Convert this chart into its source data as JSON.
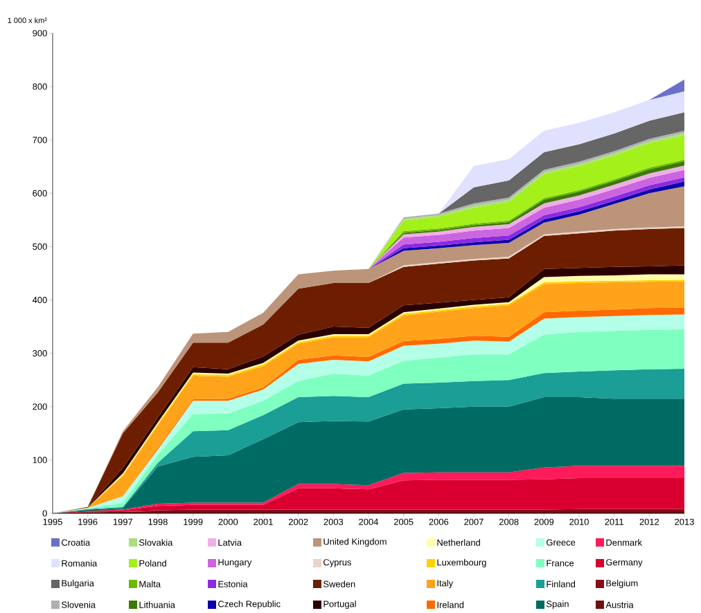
{
  "chart_data": {
    "type": "area",
    "stacked": true,
    "ylabel": "1 000 x km²",
    "xlim": [
      1995,
      2013
    ],
    "ylim": [
      0,
      900
    ],
    "xticks": [
      1995,
      1996,
      1997,
      1998,
      1999,
      2000,
      2001,
      2002,
      2003,
      2004,
      2005,
      2006,
      2007,
      2008,
      2009,
      2010,
      2011,
      2012,
      2013
    ],
    "yticks": [
      0,
      100,
      200,
      300,
      400,
      500,
      600,
      700,
      800,
      900
    ],
    "x": [
      1995,
      1996,
      1997,
      1998,
      1999,
      2000,
      2001,
      2002,
      2003,
      2004,
      2005,
      2006,
      2007,
      2008,
      2009,
      2010,
      2011,
      2012,
      2013
    ],
    "legend": "bottom",
    "series": [
      {
        "name": "Austria",
        "color": "#6b0f0f",
        "values": [
          0,
          2,
          3,
          4,
          4,
          4,
          4,
          4,
          4,
          4,
          4,
          4,
          4,
          4,
          4,
          4,
          4,
          4,
          4
        ]
      },
      {
        "name": "Belgium",
        "color": "#8b0a1e",
        "values": [
          0,
          1,
          1,
          2,
          3,
          3,
          3,
          3,
          3,
          3,
          3,
          3,
          3,
          3,
          3,
          4,
          4,
          4,
          4
        ]
      },
      {
        "name": "Germany",
        "color": "#d9002f",
        "values": [
          0,
          2,
          2,
          8,
          9,
          9,
          9,
          40,
          40,
          38,
          55,
          56,
          56,
          56,
          57,
          58,
          58,
          58,
          58
        ]
      },
      {
        "name": "Denmark",
        "color": "#ff1a5a",
        "values": [
          0,
          0,
          1,
          4,
          4,
          4,
          4,
          8,
          8,
          8,
          14,
          14,
          14,
          14,
          22,
          23,
          23,
          23,
          23
        ]
      },
      {
        "name": "Spain",
        "color": "#006b63",
        "values": [
          0,
          2,
          3,
          70,
          86,
          89,
          119,
          116,
          118,
          119,
          119,
          120,
          123,
          123,
          132,
          129,
          126,
          126,
          126
        ]
      },
      {
        "name": "Finland",
        "color": "#1a9e96",
        "values": [
          0,
          1,
          2,
          7,
          48,
          47,
          45,
          47,
          47,
          46,
          48,
          48,
          48,
          50,
          45,
          48,
          53,
          55,
          56
        ]
      },
      {
        "name": "France",
        "color": "#7fffc0",
        "values": [
          0,
          1,
          8,
          15,
          32,
          31,
          27,
          30,
          42,
          40,
          43,
          47,
          50,
          48,
          72,
          74,
          74,
          74,
          74
        ]
      },
      {
        "name": "Greece",
        "color": "#b3ffe8",
        "values": [
          0,
          1,
          12,
          10,
          25,
          24,
          21,
          32,
          26,
          27,
          28,
          26,
          26,
          24,
          30,
          28,
          28,
          28,
          28
        ]
      },
      {
        "name": "Ireland",
        "color": "#ff6a00",
        "values": [
          0,
          0,
          1,
          3,
          3,
          4,
          4,
          8,
          8,
          8,
          9,
          9,
          9,
          9,
          12,
          12,
          12,
          13,
          13
        ]
      },
      {
        "name": "Italy",
        "color": "#ffa31a",
        "values": [
          0,
          1,
          37,
          42,
          44,
          41,
          40,
          30,
          34,
          37,
          48,
          51,
          52,
          59,
          53,
          52,
          51,
          49,
          49
        ]
      },
      {
        "name": "Luxembourg",
        "color": "#ffd000",
        "values": [
          0,
          0,
          2,
          3,
          3,
          3,
          3,
          3,
          3,
          3,
          3,
          3,
          3,
          3,
          3,
          3,
          3,
          3,
          3
        ]
      },
      {
        "name": "Netherland",
        "color": "#ffffa8",
        "values": [
          0,
          0,
          3,
          3,
          3,
          3,
          3,
          3,
          3,
          3,
          3,
          3,
          3,
          3,
          10,
          10,
          10,
          11,
          10
        ]
      },
      {
        "name": "Portugal",
        "color": "#2a0000",
        "values": [
          0,
          1,
          10,
          9,
          10,
          8,
          12,
          11,
          14,
          12,
          13,
          11,
          9,
          9,
          15,
          15,
          16,
          15,
          17
        ]
      },
      {
        "name": "Sweden",
        "color": "#6e1e00",
        "values": [
          0,
          0,
          65,
          47,
          46,
          50,
          60,
          86,
          82,
          84,
          72,
          73,
          74,
          73,
          62,
          65,
          68,
          70,
          70
        ]
      },
      {
        "name": "Cyprus",
        "color": "#e8d4c8",
        "values": [
          null,
          null,
          null,
          null,
          null,
          null,
          null,
          null,
          null,
          0,
          3,
          3,
          3,
          3,
          3,
          3,
          3,
          3,
          3
        ]
      },
      {
        "name": "United Kingdom",
        "color": "#bc9479",
        "values": [
          0,
          0,
          4,
          10,
          17,
          20,
          22,
          27,
          23,
          26,
          27,
          26,
          26,
          26,
          22,
          32,
          47,
          64,
          75
        ]
      },
      {
        "name": "Czech Republic",
        "color": "#0a00a8",
        "values": [
          null,
          null,
          null,
          null,
          null,
          null,
          null,
          null,
          null,
          0,
          5,
          5,
          5,
          6,
          6,
          6,
          6,
          7,
          9
        ]
      },
      {
        "name": "Estonia",
        "color": "#8a2be2",
        "values": [
          null,
          null,
          null,
          null,
          null,
          null,
          null,
          null,
          null,
          0,
          7,
          7,
          8,
          8,
          8,
          8,
          8,
          8,
          8
        ]
      },
      {
        "name": "Hungary",
        "color": "#cc66e0",
        "values": [
          null,
          null,
          null,
          null,
          null,
          null,
          null,
          null,
          null,
          0,
          13,
          13,
          14,
          14,
          14,
          14,
          14,
          14,
          14
        ]
      },
      {
        "name": "Latvia",
        "color": "#f0aee8",
        "values": [
          null,
          null,
          null,
          null,
          null,
          null,
          null,
          null,
          null,
          0,
          6,
          6,
          7,
          7,
          8,
          8,
          8,
          8,
          8
        ]
      },
      {
        "name": "Lithuania",
        "color": "#3a7a00",
        "values": [
          null,
          null,
          null,
          null,
          null,
          null,
          null,
          null,
          null,
          0,
          3,
          3,
          3,
          4,
          7,
          7,
          7,
          8,
          8
        ]
      },
      {
        "name": "Malta",
        "color": "#6db800",
        "values": [
          null,
          null,
          null,
          null,
          null,
          null,
          null,
          null,
          null,
          0,
          3,
          3,
          3,
          3,
          3,
          3,
          3,
          3,
          3
        ]
      },
      {
        "name": "Poland",
        "color": "#a4f01a",
        "values": [
          null,
          null,
          null,
          null,
          null,
          null,
          null,
          null,
          null,
          0,
          20,
          22,
          30,
          35,
          45,
          45,
          45,
          46,
          46
        ]
      },
      {
        "name": "Slovakia",
        "color": "#a8e080",
        "values": [
          null,
          null,
          null,
          null,
          null,
          null,
          null,
          null,
          null,
          0,
          3,
          3,
          4,
          4,
          4,
          4,
          4,
          4,
          4
        ]
      },
      {
        "name": "Slovenia",
        "color": "#b0b0b0",
        "values": [
          null,
          null,
          null,
          null,
          null,
          null,
          null,
          null,
          null,
          0,
          3,
          3,
          4,
          4,
          4,
          4,
          4,
          4,
          4
        ]
      },
      {
        "name": "Bulgaria",
        "color": "#666666",
        "values": [
          null,
          null,
          null,
          null,
          null,
          null,
          null,
          null,
          null,
          null,
          null,
          0,
          30,
          32,
          33,
          33,
          33,
          34,
          35
        ]
      },
      {
        "name": "Romania",
        "color": "#e0e0ff",
        "values": [
          null,
          null,
          null,
          null,
          null,
          null,
          null,
          null,
          null,
          null,
          null,
          0,
          40,
          40,
          40,
          40,
          40,
          39,
          39
        ]
      },
      {
        "name": "Croatia",
        "color": "#6a70c8",
        "values": [
          null,
          null,
          null,
          null,
          null,
          null,
          null,
          null,
          null,
          null,
          null,
          null,
          null,
          null,
          null,
          null,
          null,
          0,
          22
        ]
      }
    ]
  }
}
